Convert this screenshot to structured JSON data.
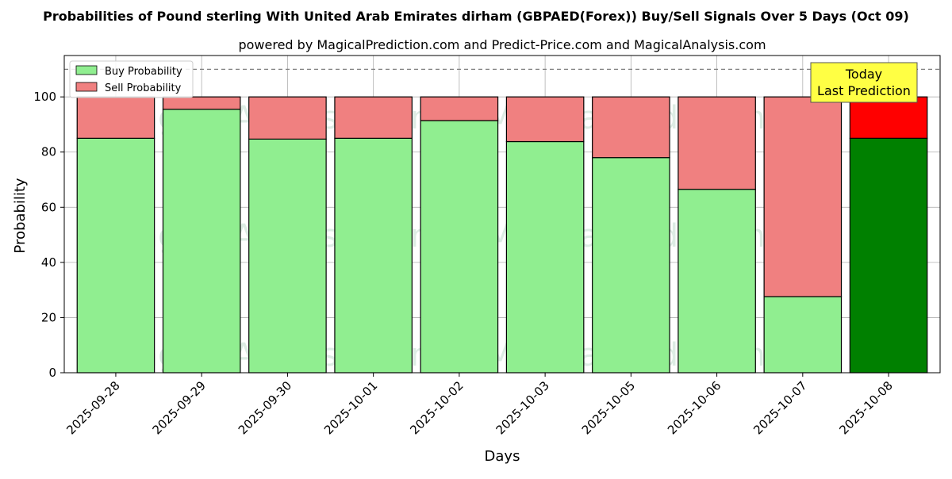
{
  "chart_data": {
    "type": "bar",
    "stacked": true,
    "title": "Probabilities of Pound sterling With United Arab Emirates dirham (GBPAED(Forex)) Buy/Sell Signals Over 5 Days (Oct 09)",
    "subtitle": "powered by MagicalPrediction.com and Predict-Price.com and MagicalAnalysis.com",
    "xlabel": "Days",
    "ylabel": "Probability",
    "ylim": [
      0,
      115
    ],
    "yticks": [
      0,
      20,
      40,
      60,
      80,
      100
    ],
    "reference_line": 110,
    "grid": true,
    "legend_position": "top-left",
    "categories": [
      "2025-09-28",
      "2025-09-29",
      "2025-09-30",
      "2025-10-01",
      "2025-10-02",
      "2025-10-03",
      "2025-10-05",
      "2025-10-06",
      "2025-10-07",
      "2025-10-08"
    ],
    "series": [
      {
        "name": "Buy Probability",
        "values": [
          85,
          95.5,
          84.7,
          85,
          91.4,
          83.8,
          78,
          66.5,
          27.6,
          85
        ],
        "color": "#90ee90",
        "highlight_color": "#008000"
      },
      {
        "name": "Sell Probability",
        "values": [
          15,
          4.5,
          15.3,
          15,
          8.6,
          16.2,
          22,
          33.5,
          72.4,
          15
        ],
        "color": "#f08080",
        "highlight_color": "#ff0000"
      }
    ],
    "highlight_index": 9,
    "annotation": {
      "line1": "Today",
      "line2": "Last Prediction",
      "background": "#ffff44"
    },
    "watermarks": [
      "MagicalAnalysis.com",
      "MagicalPrediction.com"
    ]
  }
}
